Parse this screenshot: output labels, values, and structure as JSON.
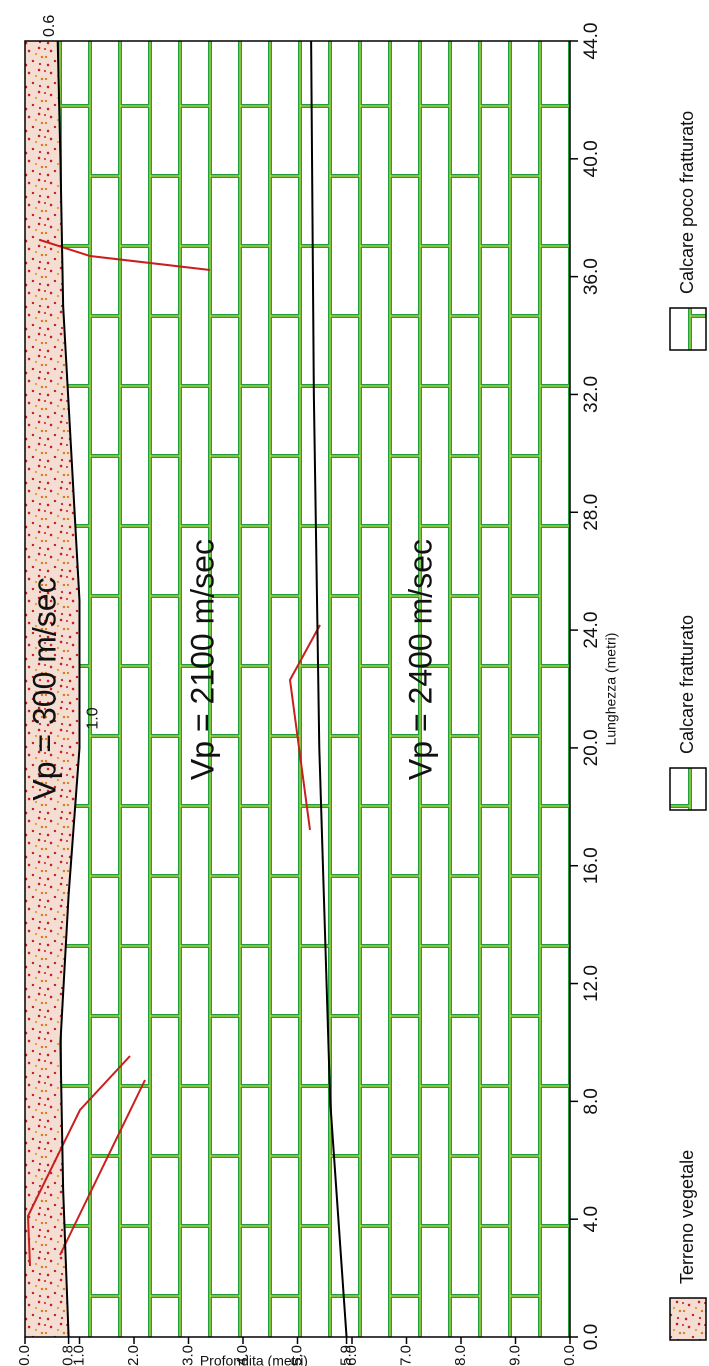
{
  "chart_data": {
    "type": "profile",
    "xlabel": "Lunghezza (metri)",
    "ylabel": "Profondita (metri)",
    "xlim": [
      0,
      44
    ],
    "ylim": [
      0,
      10
    ],
    "xticks": [
      {
        "value": 0,
        "label": "0.0"
      },
      {
        "value": 4,
        "label": "4.0"
      },
      {
        "value": 8,
        "label": "8.0"
      },
      {
        "value": 12,
        "label": "12.0"
      },
      {
        "value": 16,
        "label": "16.0"
      },
      {
        "value": 20,
        "label": "20.0"
      },
      {
        "value": 24,
        "label": "24.0"
      },
      {
        "value": 28,
        "label": "28.0"
      },
      {
        "value": 32,
        "label": "32.0"
      },
      {
        "value": 36,
        "label": "36.0"
      },
      {
        "value": 40,
        "label": "40.0"
      },
      {
        "value": 44,
        "label": "44.0"
      }
    ],
    "yticks": [
      {
        "value": 0,
        "label": "0.0"
      },
      0.8,
      {
        "value": 1,
        "label": "1.0"
      },
      {
        "value": 2,
        "label": "2.0"
      },
      {
        "value": 3,
        "label": "3.0"
      },
      {
        "value": 4,
        "label": "4.0"
      },
      {
        "value": 5,
        "label": "5.0"
      },
      5.9,
      {
        "value": 6,
        "label": "6.0"
      },
      {
        "value": 7,
        "label": "7.0"
      },
      {
        "value": 8,
        "label": "8.0"
      },
      {
        "value": 9,
        "label": "9.0"
      },
      {
        "value": 10,
        "label": "10.0"
      }
    ],
    "layers": [
      {
        "name": "Terreno vegetale",
        "velocity_label": "Vp = 300 m/sec",
        "pattern": "stipple"
      },
      {
        "name": "Calcare fratturato",
        "velocity_label": "Vp = 2100 m/sec",
        "pattern": "brick"
      },
      {
        "name": "Calcare poco fratturato",
        "velocity_label": "Vp = 2400 m/sec",
        "pattern": "brick"
      }
    ],
    "boundaries": [
      {
        "color": "#000000",
        "x": [
          0,
          5,
          10,
          15,
          20,
          25,
          30,
          35,
          40,
          44
        ],
        "values": [
          0.8,
          0.7,
          0.65,
          0.8,
          1.0,
          1.0,
          0.85,
          0.7,
          0.65,
          0.6
        ]
      },
      {
        "color": "#000000",
        "x": [
          0,
          8,
          20,
          32,
          44
        ],
        "values": [
          5.9,
          5.6,
          5.4,
          5.3,
          5.25
        ]
      }
    ],
    "annotations": [
      {
        "x": 44,
        "value": 0.6,
        "label": "0.6"
      },
      {
        "x": 21,
        "value": 1.0,
        "label": "1.0"
      }
    ]
  }
}
